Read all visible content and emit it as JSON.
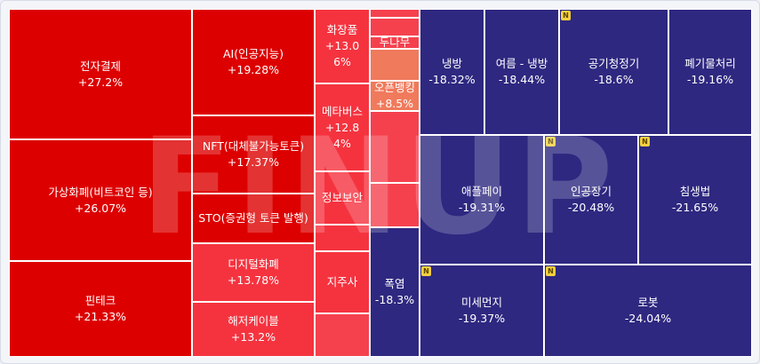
{
  "watermark": "FINUP",
  "colors": {
    "strong_up": "#dd0000",
    "mid_up": "#f5333f",
    "light_up": "#f5414e",
    "pale_up": "#f07a5c",
    "down": "#2e2880",
    "new_badge": "#f4d03f"
  },
  "badge_label": "N",
  "chart_data": {
    "type": "treemap",
    "value_unit": "%",
    "items": [
      {
        "name": "전자결제",
        "change_label": "+27.2%",
        "change": 27.2,
        "tone": "strong_up",
        "new": false
      },
      {
        "name": "가상화폐(비트코인 등)",
        "change_label": "+26.07%",
        "change": 26.07,
        "tone": "strong_up",
        "new": false
      },
      {
        "name": "핀테크",
        "change_label": "+21.33%",
        "change": 21.33,
        "tone": "strong_up",
        "new": false
      },
      {
        "name": "AI(인공지능)",
        "change_label": "+19.28%",
        "change": 19.28,
        "tone": "strong_up",
        "new": false
      },
      {
        "name": "NFT(대체불가능토큰)",
        "change_label": "+17.37%",
        "change": 17.37,
        "tone": "strong_up",
        "new": false
      },
      {
        "name": "STO(증권형 토큰 발행)",
        "change_label": "",
        "change": null,
        "tone": "strong_up",
        "new": false
      },
      {
        "name": "디지털화폐",
        "change_label": "+13.78%",
        "change": 13.78,
        "tone": "mid_up",
        "new": false
      },
      {
        "name": "해저케이블",
        "change_label": "+13.2%",
        "change": 13.2,
        "tone": "mid_up",
        "new": false
      },
      {
        "name": "화장품",
        "change_label": "+13.06%",
        "change": 13.06,
        "tone": "mid_up",
        "new": false
      },
      {
        "name": "메타버스",
        "change_label": "+12.84%",
        "change": 12.84,
        "tone": "mid_up",
        "new": false
      },
      {
        "name": "정보보안",
        "change_label": "",
        "change": null,
        "tone": "mid_up",
        "new": false
      },
      {
        "name": "",
        "change_label": "",
        "change": null,
        "tone": "mid_up",
        "new": false
      },
      {
        "name": "지주사",
        "change_label": "",
        "change": null,
        "tone": "mid_up",
        "new": false
      },
      {
        "name": "",
        "change_label": "",
        "change": null,
        "tone": "light_up",
        "new": false
      },
      {
        "name": "",
        "change_label": "",
        "change": null,
        "tone": "light_up",
        "new": false
      },
      {
        "name": "",
        "change_label": "",
        "change": null,
        "tone": "light_up",
        "new": false
      },
      {
        "name": "두나무",
        "change_label": "",
        "change": null,
        "tone": "light_up",
        "new": false
      },
      {
        "name": "",
        "change_label": "",
        "change": null,
        "tone": "pale_up",
        "new": false
      },
      {
        "name": "오픈뱅킹",
        "change_label": "+8.5%",
        "change": 8.5,
        "tone": "pale_up",
        "new": false
      },
      {
        "name": "",
        "change_label": "",
        "change": null,
        "tone": "light_up",
        "new": false
      },
      {
        "name": "",
        "change_label": "",
        "change": null,
        "tone": "light_up",
        "new": false
      },
      {
        "name": "",
        "change_label": "",
        "change": null,
        "tone": "light_up",
        "new": false
      },
      {
        "name": "폭염",
        "change_label": "-18.3%",
        "change": -18.3,
        "tone": "down",
        "new": false
      },
      {
        "name": "냉방",
        "change_label": "-18.32%",
        "change": -18.32,
        "tone": "down",
        "new": false
      },
      {
        "name": "여름 - 냉방",
        "change_label": "-18.44%",
        "change": -18.44,
        "tone": "down",
        "new": false
      },
      {
        "name": "공기청정기",
        "change_label": "-18.6%",
        "change": -18.6,
        "tone": "down",
        "new": true
      },
      {
        "name": "폐기물처리",
        "change_label": "-19.16%",
        "change": -19.16,
        "tone": "down",
        "new": false
      },
      {
        "name": "애플페이",
        "change_label": "-19.31%",
        "change": -19.31,
        "tone": "down",
        "new": false
      },
      {
        "name": "인공장기",
        "change_label": "-20.48%",
        "change": -20.48,
        "tone": "down",
        "new": true
      },
      {
        "name": "침생법",
        "change_label": "-21.65%",
        "change": -21.65,
        "tone": "down",
        "new": true
      },
      {
        "name": "미세먼지",
        "change_label": "-19.37%",
        "change": -19.37,
        "tone": "down",
        "new": true
      },
      {
        "name": "로봇",
        "change_label": "-24.04%",
        "change": -24.04,
        "tone": "down",
        "new": true
      }
    ]
  }
}
